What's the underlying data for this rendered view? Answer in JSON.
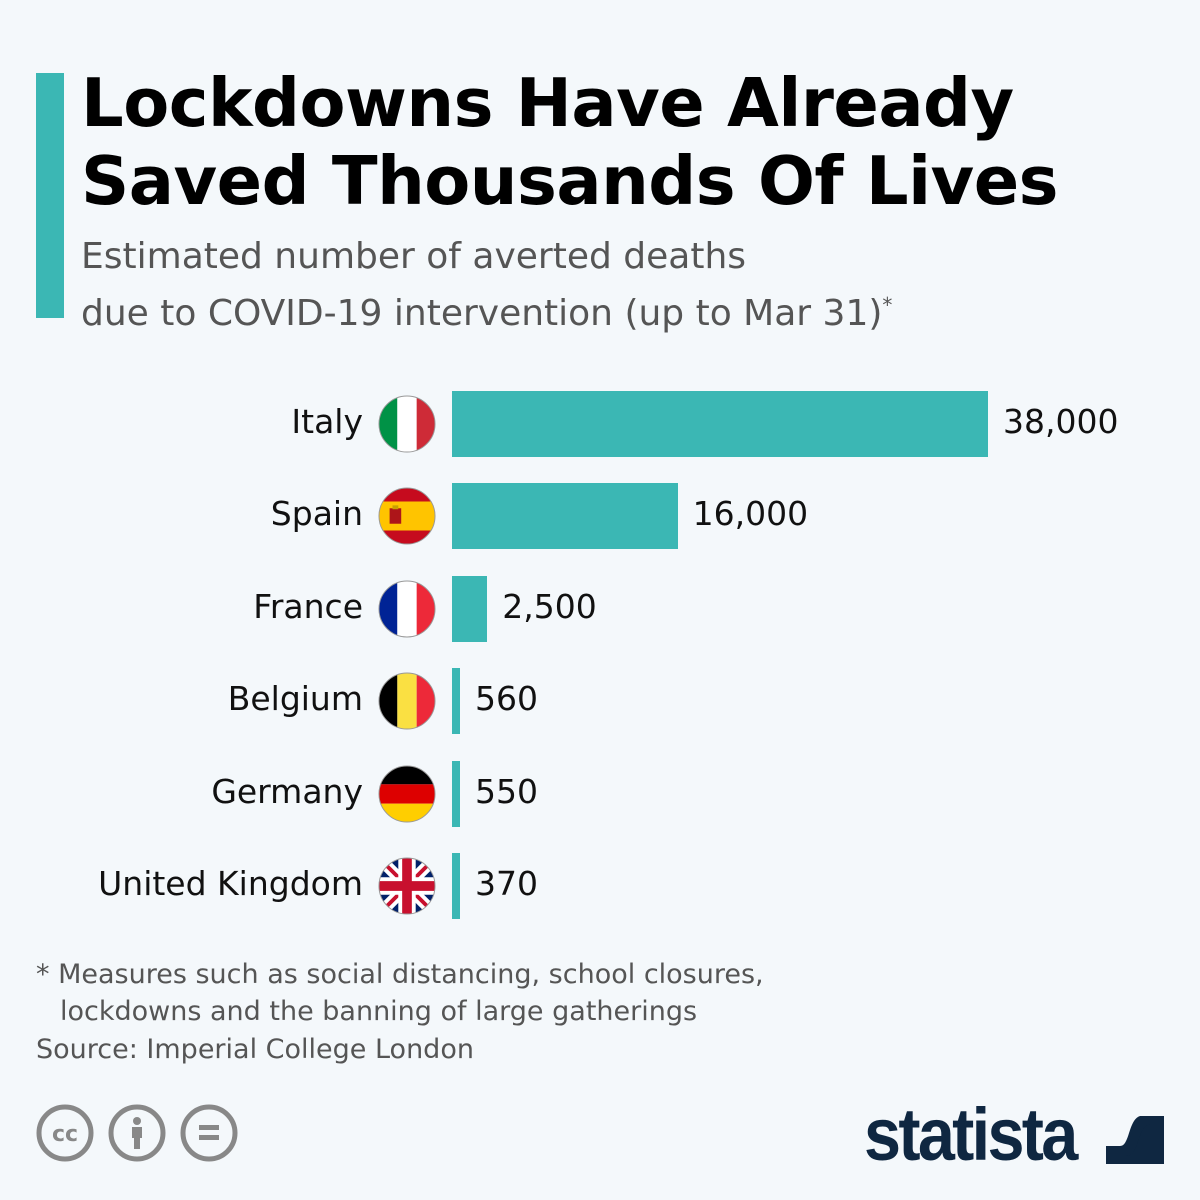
{
  "header": {
    "title_line1": "Lockdowns Have Already",
    "title_line2": "Saved Thousands Of Lives",
    "subtitle_line1": "Estimated number of averted deaths",
    "subtitle_line2": "due to COVID-19 intervention (up to Mar 31)",
    "subtitle_mark": "*"
  },
  "colors": {
    "accent": "#3bb7b4",
    "bar": "#3bb7b4",
    "logo": "#0f2741"
  },
  "chart_data": {
    "type": "bar",
    "orientation": "horizontal",
    "categories": [
      "Italy",
      "Spain",
      "France",
      "Belgium",
      "Germany",
      "United Kingdom"
    ],
    "values": [
      38000,
      16000,
      2500,
      560,
      550,
      370
    ],
    "value_labels": [
      "38,000",
      "16,000",
      "2,500",
      "560",
      "550",
      "370"
    ],
    "flags": [
      "italy-flag",
      "spain-flag",
      "france-flag",
      "belgium-flag",
      "germany-flag",
      "uk-flag"
    ],
    "xlim": [
      0,
      38000
    ],
    "grid": false
  },
  "footer": {
    "note_line1": "* Measures such as social distancing, school closures,",
    "note_line2": "lockdowns and the banning of large gatherings",
    "source": "Source: Imperial College London",
    "logo_text": "statista",
    "license_icons": [
      "cc-icon",
      "attribution-icon",
      "no-derivatives-icon"
    ]
  }
}
